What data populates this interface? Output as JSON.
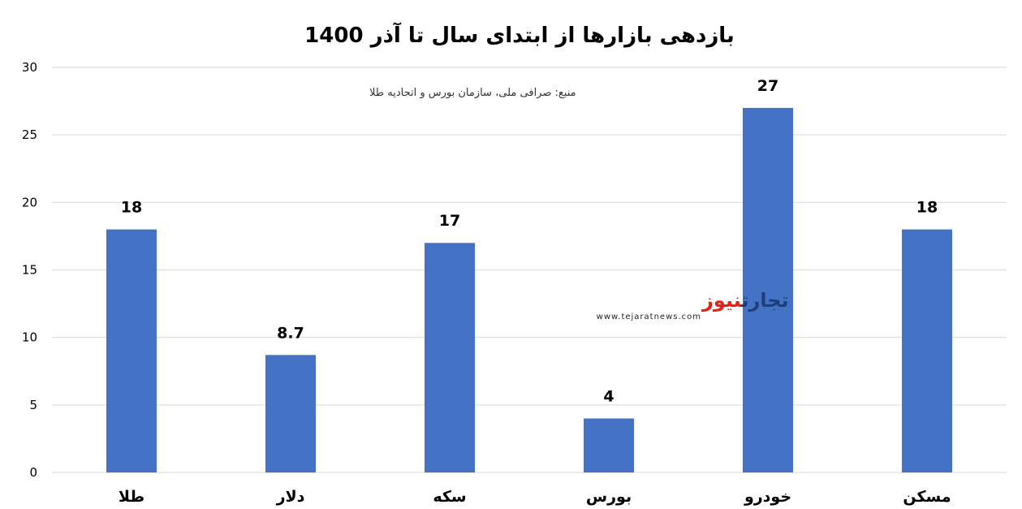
{
  "chart_data": {
    "type": "bar",
    "title": "بازدهی بازارها از ابتدای سال تا آذر 1400",
    "source_note": "منبع: صرافی ملی، سازمان بورس و اتحادیه طلا",
    "categories": [
      "طلا",
      "دلار",
      "سکه",
      "بورس",
      "خودرو",
      "مسکن"
    ],
    "values": [
      18,
      8.7,
      17,
      4,
      27,
      18
    ],
    "value_labels": [
      "18",
      "8.7",
      "17",
      "4",
      "27",
      "18"
    ],
    "ylim": [
      0,
      30
    ],
    "yticks": [
      "0",
      "5",
      "10",
      "15",
      "20",
      "25",
      "30"
    ],
    "grid": true,
    "bar_color": "#4472C4",
    "grid_color": "#d9d9d9"
  },
  "watermark": {
    "part1": "تجارت",
    "part2": "نیوز",
    "url": "www.tejaratnews.com",
    "color1": "#1f3f7a",
    "color2": "#e2231a"
  }
}
